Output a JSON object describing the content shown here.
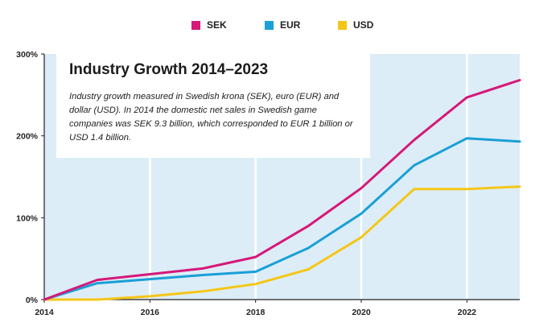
{
  "legend": [
    {
      "label": "SEK",
      "color": "#d6187a"
    },
    {
      "label": "EUR",
      "color": "#1a9fd6"
    },
    {
      "label": "USD",
      "color": "#f5c617"
    }
  ],
  "title_box": {
    "title": "Industry Growth 2014–2023",
    "text": "Industry growth measured in Swedish krona (SEK), euro (EUR) and dollar (USD). In 2014 the domestic net sales in Swedish game companies was SEK 9.3 billion, which corresponded to EUR 1 billion or USD 1.4 billion."
  },
  "chart_data": {
    "type": "line",
    "title": "Industry Growth 2014–2023",
    "x": [
      2014,
      2015,
      2016,
      2017,
      2018,
      2019,
      2020,
      2021,
      2022,
      2023
    ],
    "xlim": [
      2014,
      2023
    ],
    "ylim": [
      0,
      300
    ],
    "x_ticks": [
      2014,
      2016,
      2018,
      2020,
      2022
    ],
    "y_ticks": [
      0,
      100,
      200,
      300
    ],
    "y_tick_labels": [
      "0%",
      "100%",
      "200%",
      "300%"
    ],
    "grid": "vertical",
    "legend_position": "top-center",
    "series": [
      {
        "name": "SEK",
        "color": "#d6187a",
        "values": [
          0,
          24,
          31,
          38,
          52,
          90,
          136,
          195,
          247,
          268
        ]
      },
      {
        "name": "EUR",
        "color": "#1a9fd6",
        "values": [
          0,
          20,
          25,
          30,
          34,
          63,
          105,
          164,
          197,
          193
        ]
      },
      {
        "name": "USD",
        "color": "#f5c617",
        "values": [
          0,
          0,
          4,
          10,
          19,
          37,
          76,
          135,
          135,
          138
        ]
      }
    ]
  }
}
